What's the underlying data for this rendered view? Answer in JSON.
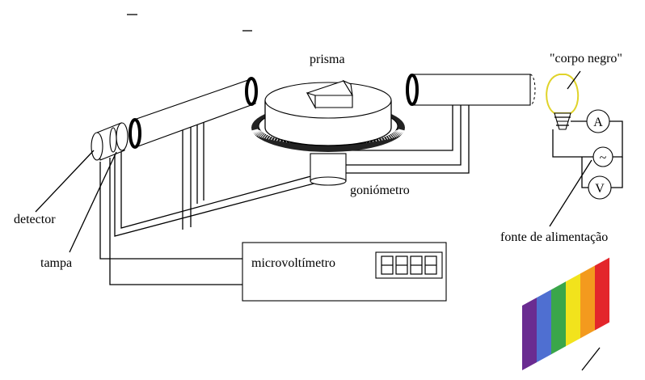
{
  "labels": {
    "prism": "prisma",
    "blackbody": "\"corpo negro\"",
    "goniometer": "goniómetro",
    "detector": "detector",
    "cap": "tampa",
    "microvoltmeter": "microvoltímetro",
    "power_supply": "fonte de alimentação",
    "ammeter": "A",
    "voltmeter": "V",
    "ac_symbol": "~"
  },
  "spectrum_colors": [
    "#6a2c91",
    "#4f6fd1",
    "#3aa64a",
    "#f2e31c",
    "#f39a1e",
    "#e3262b"
  ]
}
